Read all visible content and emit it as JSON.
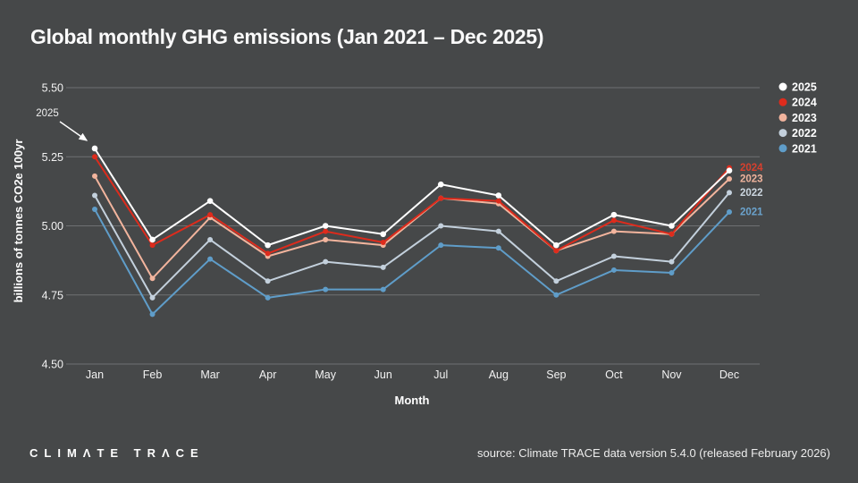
{
  "title": "Global monthly GHG emissions (Jan 2021 – Dec 2025)",
  "annotation": {
    "label": "2025"
  },
  "footer": {
    "logo": "CLIMΛTE TRΛCE",
    "source": "source: Climate TRACE data version 5.4.0 (released February 2026)"
  },
  "colors": {
    "background": "#464849",
    "gridline": "#6e7072",
    "text": "#f2f2f2"
  },
  "chart_data": {
    "type": "line",
    "title": "Global monthly GHG emissions (Jan 2021 – Dec 2025)",
    "x": [
      "Jan",
      "Feb",
      "Mar",
      "Apr",
      "May",
      "Jun",
      "Jul",
      "Aug",
      "Sep",
      "Oct",
      "Nov",
      "Dec"
    ],
    "xlabel": "Month",
    "ylabel": "billions of tonnes CO2e 100yr",
    "ylim": [
      4.5,
      5.5
    ],
    "yticks": [
      "5.50",
      "5.25",
      "5.00",
      "4.75",
      "4.50"
    ],
    "grid": "horizontal",
    "legend_position": "top-right",
    "legend_order": [
      "2025",
      "2024",
      "2023",
      "2022",
      "2021"
    ],
    "series": [
      {
        "name": "2021",
        "color": "#5f9dc9",
        "label_color": "#6ba3cd",
        "end_label": true,
        "values": [
          5.06,
          4.68,
          4.88,
          4.74,
          4.77,
          4.77,
          4.93,
          4.92,
          4.75,
          4.84,
          4.83,
          5.05
        ]
      },
      {
        "name": "2022",
        "color": "#c3d0dc",
        "label_color": "#ccd6df",
        "end_label": true,
        "values": [
          5.11,
          4.74,
          4.95,
          4.8,
          4.87,
          4.85,
          5.0,
          4.98,
          4.8,
          4.89,
          4.87,
          5.12
        ]
      },
      {
        "name": "2023",
        "color": "#f2b49d",
        "label_color": "#edb29c",
        "end_label": true,
        "values": [
          5.18,
          4.81,
          5.03,
          4.89,
          4.95,
          4.93,
          5.1,
          5.08,
          4.91,
          4.98,
          4.97,
          5.17
        ]
      },
      {
        "name": "2024",
        "color": "#de2b1c",
        "label_color": "#d6402e",
        "end_label": true,
        "values": [
          5.25,
          4.93,
          5.04,
          4.9,
          4.98,
          4.94,
          5.1,
          5.09,
          4.91,
          5.02,
          4.97,
          5.21
        ]
      },
      {
        "name": "2025",
        "color": "#ffffff",
        "label_color": null,
        "end_label": false,
        "values": [
          5.28,
          4.95,
          5.09,
          4.93,
          5.0,
          4.97,
          5.15,
          5.11,
          4.93,
          5.04,
          5.0,
          5.2
        ]
      }
    ]
  }
}
